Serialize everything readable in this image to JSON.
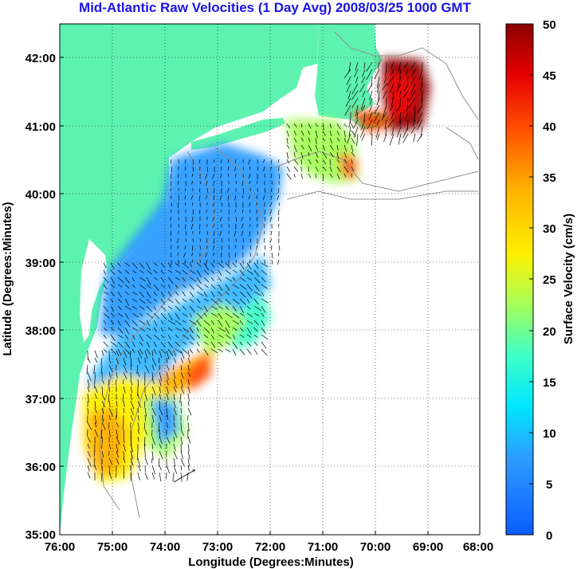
{
  "title": "Mid-Atlantic Raw Velocities (1 Day Avg) 2008/03/25 1000 GMT",
  "map": {
    "xlabel": "Longitude (Degrees:Minutes)",
    "ylabel": "Latitude (Degrees:Minutes)",
    "lon_ticks": [
      "76:00",
      "75:00",
      "74:00",
      "73:00",
      "72:00",
      "71:00",
      "70:00",
      "69:00",
      "68:00"
    ],
    "lat_ticks": [
      "42:00",
      "41:00",
      "40:00",
      "39:00",
      "38:00",
      "37:00",
      "36:00",
      "35:00"
    ],
    "lon_range": [
      -76,
      -68
    ],
    "lat_range": [
      35,
      42.5
    ],
    "land_color": "#5ef2b0",
    "contour_color": "#909090",
    "grid": "dotted"
  },
  "colorbar": {
    "label": "Surface Velocity (cm/s)",
    "ticks": [
      "50",
      "45",
      "40",
      "35",
      "30",
      "25",
      "20",
      "15",
      "10",
      "5",
      "0"
    ],
    "min": 0,
    "max": 50,
    "colormap": "jet"
  }
}
